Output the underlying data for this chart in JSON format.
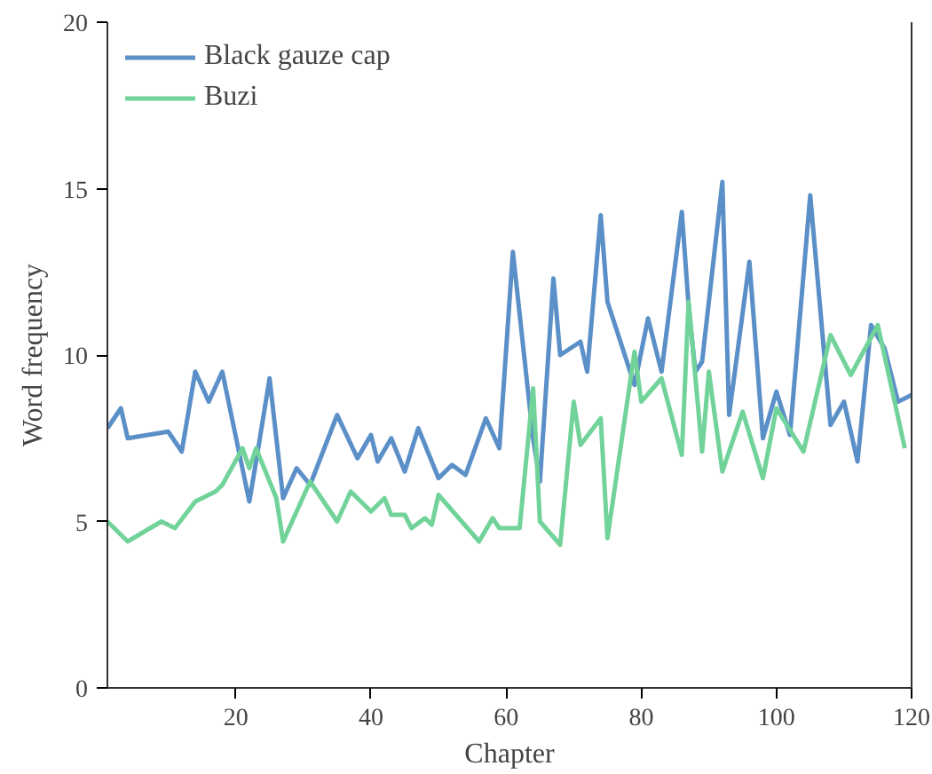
{
  "chart_data": {
    "type": "line",
    "xlabel": "Chapter",
    "ylabel": "Word frequency",
    "xlim": [
      1,
      120
    ],
    "xticks": [
      20,
      40,
      60,
      80,
      100,
      120
    ],
    "ylim": [
      0,
      20
    ],
    "yticks": [
      0,
      5,
      10,
      15,
      20
    ],
    "grid": false,
    "legend": "top left",
    "line_style": "solid",
    "series": [
      {
        "name": "Black gauze cap",
        "color": "#5b8fc7",
        "x": [
          1,
          3,
          4,
          10,
          12,
          14,
          16,
          18,
          22,
          23,
          25,
          27,
          29,
          31,
          35,
          38,
          40,
          41,
          43,
          45,
          47,
          50,
          52,
          54,
          57,
          59,
          61,
          64,
          65,
          67,
          68,
          71,
          72,
          74,
          75,
          79,
          81,
          83,
          86,
          87,
          88,
          89,
          92,
          93,
          96,
          98,
          100,
          102,
          105,
          108,
          110,
          112,
          114,
          116,
          118,
          120
        ],
        "values": [
          7.8,
          8.4,
          7.5,
          7.7,
          7.1,
          9.5,
          8.6,
          9.5,
          5.6,
          6.8,
          9.3,
          5.7,
          6.6,
          6.1,
          8.2,
          6.9,
          7.6,
          6.8,
          7.5,
          6.5,
          7.8,
          6.3,
          6.7,
          6.4,
          8.1,
          7.2,
          13.1,
          7.5,
          6.2,
          12.3,
          10.0,
          10.4,
          9.5,
          14.2,
          11.6,
          9.1,
          11.1,
          9.5,
          14.3,
          11.5,
          9.5,
          9.8,
          15.2,
          8.2,
          12.8,
          7.5,
          8.9,
          7.6,
          14.8,
          7.9,
          8.6,
          6.8,
          10.9,
          10.2,
          8.6,
          8.8
        ]
      },
      {
        "name": "Buzi",
        "color": "#72d39a",
        "x": [
          1,
          4,
          9,
          11,
          14,
          17,
          18,
          21,
          22,
          23,
          26,
          27,
          31,
          35,
          37,
          40,
          42,
          43,
          45,
          46,
          48,
          49,
          50,
          56,
          58,
          59,
          62,
          64,
          65,
          68,
          70,
          71,
          74,
          75,
          79,
          80,
          83,
          86,
          87,
          89,
          90,
          92,
          95,
          98,
          100,
          104,
          108,
          111,
          115,
          119
        ],
        "values": [
          5.0,
          4.4,
          5.0,
          4.8,
          5.6,
          5.9,
          6.1,
          7.2,
          6.6,
          7.2,
          5.7,
          4.4,
          6.2,
          5.0,
          5.9,
          5.3,
          5.7,
          5.2,
          5.2,
          4.8,
          5.1,
          4.9,
          5.8,
          4.4,
          5.1,
          4.8,
          4.8,
          9.0,
          5.0,
          4.3,
          8.6,
          7.3,
          8.1,
          4.5,
          10.1,
          8.6,
          9.3,
          7.0,
          11.6,
          7.1,
          9.5,
          6.5,
          8.3,
          6.3,
          8.4,
          7.1,
          10.6,
          9.4,
          10.9,
          7.2
        ]
      }
    ]
  }
}
